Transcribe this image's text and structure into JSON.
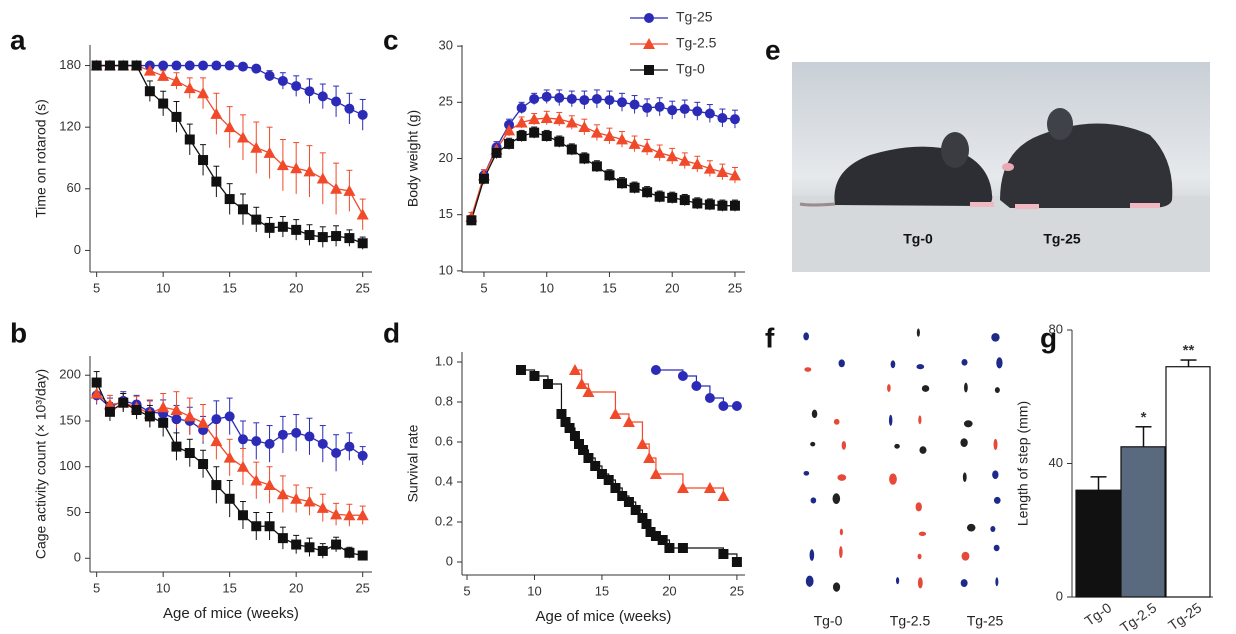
{
  "chart_data": [
    {
      "panel": "a",
      "type": "line",
      "y_label": "Time on rotarod (s)",
      "x": [
        5,
        6,
        7,
        8,
        9,
        10,
        11,
        12,
        13,
        14,
        15,
        16,
        17,
        18,
        19,
        20,
        21,
        22,
        23,
        24,
        25
      ],
      "xlim": [
        4.5,
        25.7
      ],
      "xticks": [
        5,
        10,
        15,
        20,
        25
      ],
      "ylim": [
        -21,
        200
      ],
      "yticks": [
        0,
        60,
        120,
        180
      ],
      "series": [
        {
          "color": "#2b2bb8",
          "marker": "circle",
          "values": [
            180,
            180,
            180,
            180,
            180,
            180,
            180,
            180,
            180,
            180,
            180,
            179,
            177,
            170,
            165,
            160,
            155,
            150,
            145,
            138,
            132
          ],
          "errors": [
            0,
            0,
            0,
            0,
            0,
            0,
            0,
            0,
            0,
            0,
            0,
            2,
            3,
            5,
            8,
            10,
            12,
            12,
            15,
            15,
            15
          ]
        },
        {
          "color": "#f04a2a",
          "marker": "triangle",
          "values": [
            180,
            180,
            180,
            180,
            175,
            170,
            165,
            158,
            153,
            133,
            120,
            110,
            100,
            95,
            83,
            80,
            77,
            70,
            60,
            58,
            35
          ],
          "errors": [
            0,
            0,
            0,
            0,
            3,
            5,
            8,
            10,
            15,
            20,
            20,
            22,
            25,
            25,
            25,
            25,
            25,
            25,
            25,
            20,
            15
          ]
        },
        {
          "color": "#111111",
          "marker": "square",
          "values": [
            180,
            180,
            180,
            180,
            155,
            143,
            130,
            108,
            88,
            67,
            50,
            40,
            30,
            22,
            23,
            20,
            15,
            13,
            14,
            12,
            7
          ],
          "errors": [
            0,
            0,
            0,
            0,
            10,
            12,
            15,
            15,
            15,
            15,
            15,
            15,
            12,
            10,
            10,
            10,
            10,
            10,
            10,
            8,
            6
          ]
        }
      ]
    },
    {
      "panel": "b",
      "type": "line",
      "y_label": "Cage activity count (× 10³/day)",
      "x_label": "Age of mice (weeks)",
      "x": [
        5,
        6,
        7,
        8,
        9,
        10,
        11,
        12,
        13,
        14,
        15,
        16,
        17,
        18,
        19,
        20,
        21,
        22,
        23,
        24,
        25
      ],
      "xlim": [
        4.5,
        25.7
      ],
      "xticks": [
        5,
        10,
        15,
        20,
        25
      ],
      "ylim": [
        -15,
        221
      ],
      "yticks": [
        0,
        50,
        100,
        150,
        200
      ],
      "series": [
        {
          "color": "#2b2bb8",
          "marker": "circle",
          "values": [
            178,
            165,
            172,
            168,
            160,
            158,
            152,
            150,
            140,
            152,
            155,
            130,
            128,
            125,
            135,
            137,
            133,
            125,
            115,
            122,
            112
          ],
          "errors": [
            10,
            10,
            10,
            10,
            12,
            15,
            15,
            15,
            15,
            20,
            20,
            20,
            20,
            20,
            20,
            20,
            20,
            20,
            20,
            15,
            10
          ]
        },
        {
          "color": "#f04a2a",
          "marker": "triangle",
          "values": [
            180,
            168,
            170,
            165,
            158,
            165,
            162,
            155,
            148,
            128,
            110,
            100,
            85,
            80,
            70,
            65,
            62,
            55,
            48,
            47,
            47
          ],
          "errors": [
            10,
            10,
            10,
            12,
            15,
            15,
            20,
            20,
            20,
            20,
            20,
            20,
            20,
            20,
            20,
            15,
            15,
            15,
            12,
            12,
            10
          ]
        },
        {
          "color": "#111111",
          "marker": "square",
          "values": [
            192,
            160,
            170,
            162,
            155,
            148,
            122,
            115,
            103,
            80,
            65,
            47,
            35,
            35,
            22,
            15,
            12,
            8,
            15,
            6,
            3
          ],
          "errors": [
            12,
            10,
            10,
            10,
            12,
            15,
            15,
            15,
            15,
            20,
            20,
            15,
            15,
            15,
            12,
            10,
            10,
            8,
            8,
            6,
            4
          ]
        }
      ]
    },
    {
      "panel": "c",
      "type": "line",
      "y_label": "Body weight (g)",
      "legend": "upper right",
      "x": [
        4,
        5,
        6,
        7,
        8,
        9,
        10,
        11,
        12,
        13,
        14,
        15,
        16,
        17,
        18,
        19,
        20,
        21,
        22,
        23,
        24,
        25
      ],
      "xlim": [
        3.25,
        25.8
      ],
      "xticks": [
        5,
        10,
        15,
        20,
        25
      ],
      "ylim": [
        9.9,
        30.1
      ],
      "yticks": [
        10,
        15,
        20,
        25,
        30
      ],
      "series": [
        {
          "name": "Tg-25",
          "color": "#2b2bb8",
          "marker": "circle",
          "values": [
            14.5,
            18.5,
            21,
            23,
            24.5,
            25.3,
            25.5,
            25.4,
            25.3,
            25.2,
            25.3,
            25.2,
            25,
            24.8,
            24.5,
            24.6,
            24.3,
            24.4,
            24.2,
            24,
            23.6,
            23.5
          ],
          "errors": [
            0.4,
            0.5,
            0.5,
            0.5,
            0.5,
            0.5,
            0.6,
            0.7,
            0.7,
            0.8,
            0.8,
            0.8,
            0.8,
            0.8,
            0.8,
            0.8,
            0.8,
            0.8,
            0.8,
            0.8,
            0.8,
            0.8
          ]
        },
        {
          "name": "Tg-2.5",
          "color": "#f04a2a",
          "marker": "triangle",
          "values": [
            14.8,
            18.5,
            20.8,
            22.5,
            23.2,
            23.5,
            23.6,
            23.5,
            23.2,
            22.8,
            22.3,
            22,
            21.7,
            21.3,
            21,
            20.5,
            20.2,
            19.8,
            19.5,
            19.1,
            18.8,
            18.5
          ],
          "errors": [
            0.4,
            0.5,
            0.5,
            0.5,
            0.5,
            0.5,
            0.6,
            0.6,
            0.6,
            0.7,
            0.7,
            0.7,
            0.7,
            0.7,
            0.7,
            0.7,
            0.7,
            0.7,
            0.7,
            0.7,
            0.7,
            0.7
          ]
        },
        {
          "name": "Tg-0",
          "color": "#111111",
          "marker": "square",
          "values": [
            14.5,
            18.2,
            20.5,
            21.3,
            22,
            22.3,
            22,
            21.5,
            20.8,
            20,
            19.3,
            18.5,
            17.8,
            17.4,
            17,
            16.6,
            16.5,
            16.3,
            16,
            15.9,
            15.8,
            15.8
          ],
          "errors": [
            0.4,
            0.5,
            0.5,
            0.5,
            0.5,
            0.5,
            0.5,
            0.5,
            0.5,
            0.5,
            0.5,
            0.5,
            0.5,
            0.5,
            0.5,
            0.5,
            0.5,
            0.5,
            0.5,
            0.5,
            0.5,
            0.5
          ]
        }
      ]
    },
    {
      "panel": "d",
      "type": "step",
      "y_label": "Survival rate",
      "x_label": "Age of mice (weeks)",
      "xlim": [
        4.63,
        25.6
      ],
      "xticks": [
        5,
        10,
        15,
        20,
        25
      ],
      "ylim": [
        -0.065,
        1.05
      ],
      "yticks": [
        0,
        0.2,
        0.4,
        0.6,
        0.8,
        {
          "value": 1,
          "label": "1.0"
        }
      ],
      "series": [
        {
          "color": "#2b2bb8",
          "marker": "circle",
          "x": [
            19,
            21,
            22,
            23,
            24,
            25
          ],
          "values": [
            0.96,
            0.93,
            0.88,
            0.82,
            0.78,
            0.78
          ]
        },
        {
          "color": "#f04a2a",
          "marker": "triangle",
          "x": [
            13,
            13.5,
            14,
            16,
            17,
            18,
            18.5,
            19,
            21,
            23,
            24
          ],
          "values": [
            0.96,
            0.89,
            0.85,
            0.74,
            0.7,
            0.59,
            0.52,
            0.44,
            0.37,
            0.37,
            0.33
          ]
        },
        {
          "color": "#111111",
          "marker": "square",
          "x": [
            9,
            10,
            11,
            12,
            12.3,
            12.6,
            13,
            13.3,
            13.6,
            14,
            14.5,
            15,
            15.5,
            16,
            16.5,
            17,
            17.5,
            18,
            18.3,
            18.6,
            19,
            19.5,
            20,
            21,
            24,
            25
          ],
          "values": [
            0.96,
            0.93,
            0.89,
            0.74,
            0.7,
            0.67,
            0.63,
            0.59,
            0.56,
            0.52,
            0.48,
            0.44,
            0.41,
            0.37,
            0.33,
            0.3,
            0.26,
            0.22,
            0.19,
            0.15,
            0.13,
            0.11,
            0.07,
            0.07,
            0.04,
            0
          ]
        }
      ]
    },
    {
      "panel": "e",
      "type": "photo",
      "labels": [
        "Tg-0",
        "Tg-25"
      ]
    },
    {
      "panel": "f",
      "type": "footprints",
      "labels": [
        "Tg-0",
        "Tg-2.5",
        "Tg-25"
      ]
    },
    {
      "panel": "g",
      "type": "bar",
      "y_label": "Length of step (mm)",
      "categories": [
        "Tg-0",
        "Tg-2.5",
        "Tg-25"
      ],
      "values": [
        32,
        45,
        69
      ],
      "errors": [
        4,
        6,
        2
      ],
      "annotations": [
        null,
        "*",
        "**"
      ],
      "colors": [
        "#111111",
        "#5a6a7e",
        "#ffffff"
      ],
      "ylim": [
        0,
        80
      ],
      "yticks": [
        0,
        40,
        80
      ]
    }
  ]
}
